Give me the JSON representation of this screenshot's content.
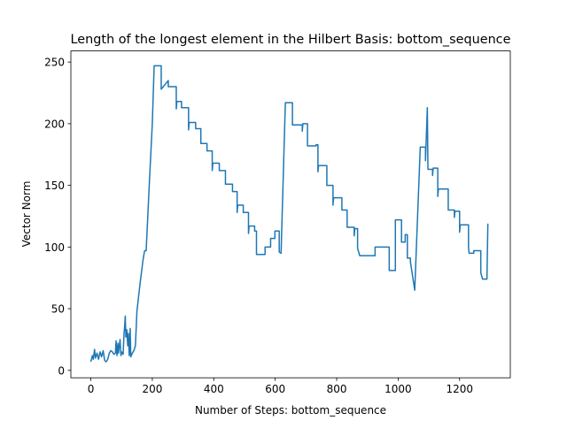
{
  "chart_data": {
    "type": "line",
    "title": "Length of the longest element in the Hilbert Basis: bottom_sequence",
    "xlabel": "Number of Steps: bottom_sequence",
    "ylabel": "Vector Norm",
    "color": "#1f77b4",
    "xlim": [
      -65,
      1365
    ],
    "ylim": [
      -6,
      259
    ],
    "xticks": [
      0,
      200,
      400,
      600,
      800,
      1000,
      1200
    ],
    "yticks": [
      0,
      50,
      100,
      150,
      200,
      250
    ],
    "x": [
      0,
      5,
      8,
      12,
      15,
      20,
      25,
      30,
      35,
      40,
      45,
      50,
      55,
      60,
      65,
      70,
      75,
      80,
      82,
      85,
      88,
      90,
      95,
      98,
      100,
      105,
      108,
      110,
      112,
      114,
      117,
      120,
      122,
      125,
      128,
      130,
      135,
      140,
      145,
      150,
      160,
      170,
      175,
      180,
      190,
      200,
      206,
      229,
      229,
      252,
      252,
      278,
      278,
      280,
      295,
      295,
      318,
      318,
      320,
      341,
      341,
      358,
      358,
      378,
      378,
      395,
      395,
      397,
      418,
      418,
      438,
      438,
      461,
      461,
      476,
      476,
      478,
      496,
      496,
      513,
      513,
      515,
      533,
      533,
      539,
      539,
      567,
      567,
      585,
      585,
      599,
      599,
      613,
      613,
      619,
      633,
      656,
      656,
      688,
      688,
      690,
      705,
      705,
      733,
      733,
      739,
      739,
      741,
      768,
      768,
      788,
      788,
      790,
      817,
      817,
      834,
      834,
      857,
      857,
      859,
      868,
      868,
      875,
      925,
      925,
      971,
      971,
      991,
      991,
      1011,
      1011,
      1023,
      1023,
      1030,
      1030,
      1040,
      1040,
      1054,
      1072,
      1089,
      1089,
      1095,
      1097,
      1112,
      1112,
      1114,
      1129,
      1129,
      1131,
      1163,
      1163,
      1183,
      1183,
      1185,
      1200,
      1200,
      1202,
      1229,
      1229,
      1231,
      1246,
      1246,
      1269,
      1269,
      1275,
      1289,
      1292
    ],
    "values": [
      7,
      12,
      9,
      17,
      10,
      14,
      9,
      15,
      11,
      16,
      8,
      7,
      9,
      14,
      16,
      15,
      13,
      14,
      24,
      12,
      22,
      14,
      25,
      12,
      15,
      13,
      30,
      36,
      44,
      27,
      33,
      20,
      30,
      12,
      34,
      11,
      14,
      16,
      20,
      48,
      70,
      90,
      97,
      97,
      150,
      200,
      247,
      247,
      228,
      235,
      230,
      230,
      212,
      218,
      218,
      213,
      213,
      195,
      201,
      201,
      196,
      196,
      184,
      184,
      178,
      178,
      162,
      168,
      168,
      162,
      162,
      151,
      151,
      145,
      145,
      128,
      134,
      134,
      128,
      128,
      111,
      117,
      117,
      113,
      113,
      94,
      94,
      100,
      100,
      107,
      107,
      113,
      113,
      96,
      95,
      217,
      217,
      199,
      199,
      194,
      200,
      200,
      182,
      182,
      183,
      183,
      161,
      166,
      166,
      150,
      150,
      134,
      140,
      140,
      130,
      130,
      116,
      116,
      109,
      115,
      115,
      99,
      93,
      93,
      100,
      100,
      81,
      81,
      122,
      122,
      104,
      104,
      110,
      110,
      91,
      91,
      88,
      65,
      181,
      181,
      170,
      213,
      163,
      163,
      158,
      164,
      164,
      141,
      147,
      147,
      130,
      130,
      124,
      129,
      129,
      112,
      118,
      118,
      100,
      95,
      95,
      97,
      97,
      79,
      74,
      74,
      119
    ]
  }
}
